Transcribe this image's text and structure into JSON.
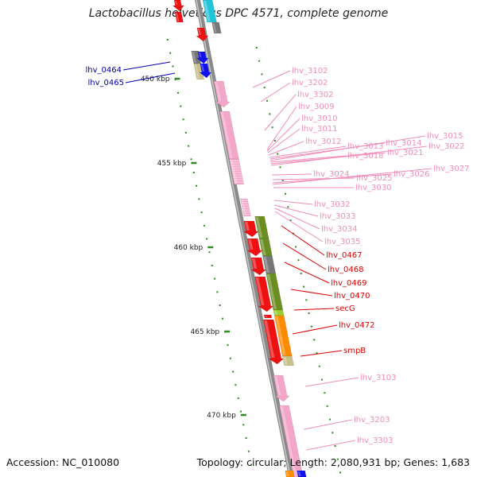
{
  "title": "Lactobacillus helveticus DPC 4571, complete genome",
  "footer": {
    "accession_label": "Accession: NC_010080",
    "topology_label": "Topology: circular; Length: 2,080,931 bp; Genes: 1,683"
  },
  "ticks": [
    "450 kbp",
    "455 kbp",
    "460 kbp",
    "465 kbp",
    "470 kbp"
  ],
  "colors": {
    "pink": "#f4a6c8",
    "red": "#ee1111",
    "olive": "#6b8e23",
    "gray": "#777777",
    "orange": "#ff8c00",
    "khaki": "#c8c08a",
    "blue": "#1010ee",
    "cyan": "#22c5d8",
    "tick_green": "#2e8b20",
    "label_blue": "#0000aa",
    "label_red": "#dd0000",
    "label_pink": "#f08cb8"
  },
  "gene_labels": {
    "left": [
      "lhv_0464",
      "lhv_0465"
    ],
    "pink": [
      "lhv_3102",
      "lhv_3202",
      "lhv_3302",
      "lhv_3009",
      "lhv_3010",
      "lhv_3011",
      "lhv_3012",
      "lhv_3013",
      "lhv_3014",
      "lhv_3015",
      "lhv_3018",
      "lhv_3021",
      "lhv_3022",
      "lhv_3024",
      "lhv_3025",
      "lhv_3026",
      "lhv_3027",
      "lhv_3030",
      "lhv_3032",
      "lhv_3033",
      "lhv_3034",
      "lhv_3035"
    ],
    "red": [
      "lhv_0467",
      "lhv_0468",
      "lhv_0469",
      "lhv_0470",
      "secG",
      "lhv_0472",
      "smpB"
    ],
    "pink_lower": [
      "lhv_3103",
      "lhv_3203",
      "lhv_3303"
    ]
  }
}
